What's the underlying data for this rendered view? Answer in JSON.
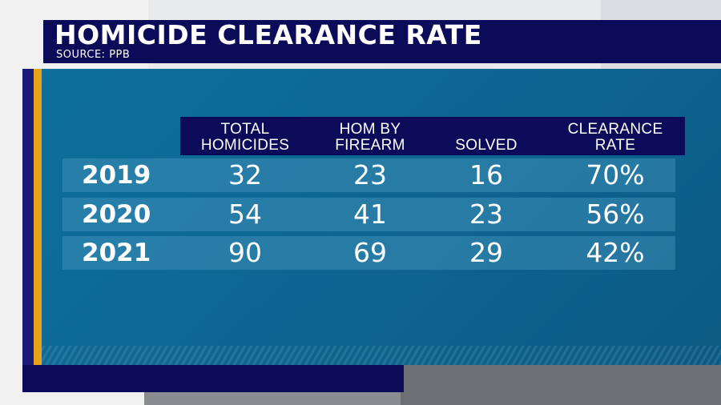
{
  "header": {
    "title": "HOMICIDE CLEARANCE RATE",
    "source": "SOURCE: PPB"
  },
  "columns": [
    {
      "line1": "TOTAL",
      "line2": "HOMICIDES"
    },
    {
      "line1": "HOM BY",
      "line2": "FIREARM"
    },
    {
      "line1": "",
      "line2": "SOLVED"
    },
    {
      "line1": "CLEARANCE",
      "line2": "RATE"
    }
  ],
  "rows": [
    {
      "year": "2019",
      "total": "32",
      "firearm": "23",
      "solved": "16",
      "rate": "70%"
    },
    {
      "year": "2020",
      "total": "54",
      "firearm": "41",
      "solved": "23",
      "rate": "56%"
    },
    {
      "year": "2021",
      "total": "90",
      "firearm": "69",
      "solved": "29",
      "rate": "42%"
    }
  ],
  "colors": {
    "navy": "#0c0b5a",
    "panel": "#0e6f9b",
    "gold": "#e8a31c"
  }
}
